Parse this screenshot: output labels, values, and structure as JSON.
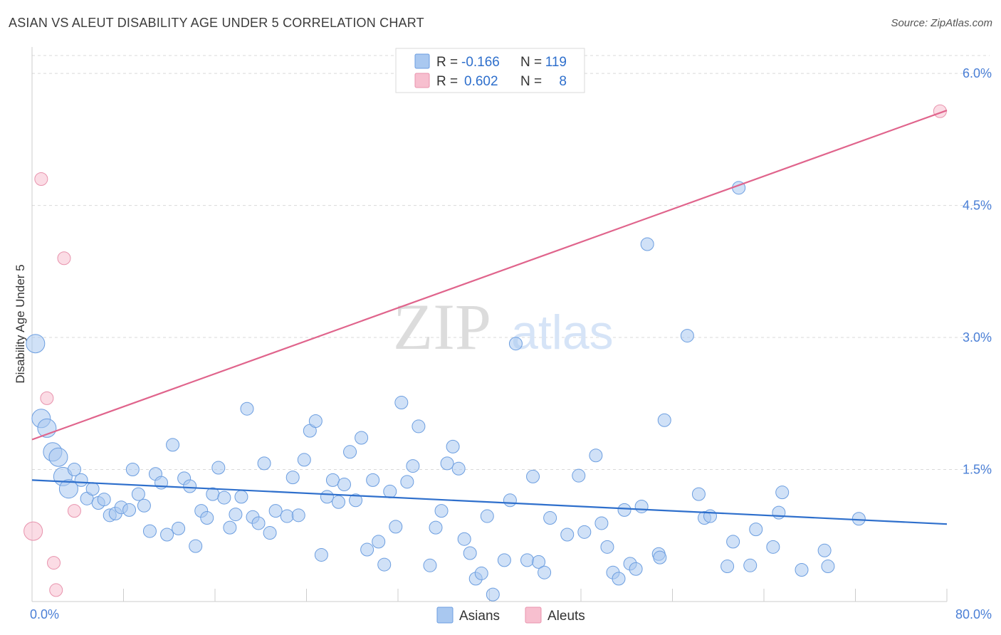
{
  "title": "ASIAN VS ALEUT DISABILITY AGE UNDER 5 CORRELATION CHART",
  "source": "Source: ZipAtlas.com",
  "watermark": {
    "zip": "ZIP",
    "atlas": "atlas"
  },
  "colors": {
    "asian_fill": "#a9c8f0",
    "asian_stroke": "#6c9ee0",
    "asian_line": "#2e6fcc",
    "aleut_fill": "#f7bfcf",
    "aleut_stroke": "#e893ad",
    "aleut_line": "#e0648c",
    "grid": "#d9d9d9",
    "tick_label": "#4a7fd6"
  },
  "legend": {
    "rows": [
      {
        "r_label": "R =",
        "r_value": "-0.166",
        "n_label": "N =",
        "n_value": "119"
      },
      {
        "r_label": "R =",
        "r_value": "0.602",
        "n_label": "N =",
        "n_value": "8"
      }
    ]
  },
  "bottom_legend": [
    "Asians",
    "Aleuts"
  ],
  "chart_data": {
    "type": "scatter",
    "title": "ASIAN VS ALEUT DISABILITY AGE UNDER 5 CORRELATION CHART",
    "xlabel": "",
    "ylabel": "Disability Age Under 5",
    "xlim": [
      0,
      80
    ],
    "ylim": [
      0,
      6.3
    ],
    "x_tick_labels": [
      {
        "value": 0,
        "label": "0.0%"
      },
      {
        "value": 80,
        "label": "80.0%"
      }
    ],
    "y_tick_labels": [
      {
        "value": 1.5,
        "label": "1.5%"
      },
      {
        "value": 3.0,
        "label": "3.0%"
      },
      {
        "value": 4.5,
        "label": "4.5%"
      },
      {
        "value": 6.0,
        "label": "6.0%"
      }
    ],
    "series": [
      {
        "name": "Asians",
        "r": -0.166,
        "n": 119,
        "trend": {
          "x": [
            0,
            80
          ],
          "y": [
            1.38,
            0.88
          ]
        },
        "points": [
          [
            0.3,
            2.93,
            3
          ],
          [
            0.8,
            2.08,
            3
          ],
          [
            1.3,
            1.97,
            3
          ],
          [
            1.8,
            1.7,
            3
          ],
          [
            2.3,
            1.64,
            3
          ],
          [
            2.7,
            1.42,
            3
          ],
          [
            3.2,
            1.28,
            3
          ],
          [
            3.7,
            1.5,
            2
          ],
          [
            4.3,
            1.38,
            2
          ],
          [
            4.8,
            1.17,
            2
          ],
          [
            5.3,
            1.28,
            2
          ],
          [
            5.8,
            1.12,
            2
          ],
          [
            6.3,
            1.16,
            2
          ],
          [
            6.8,
            0.98,
            2
          ],
          [
            7.3,
            1.0,
            2
          ],
          [
            7.8,
            1.07,
            2
          ],
          [
            8.5,
            1.04,
            2
          ],
          [
            8.8,
            1.5,
            2
          ],
          [
            9.3,
            1.22,
            2
          ],
          [
            9.8,
            1.09,
            2
          ],
          [
            10.3,
            0.8,
            2
          ],
          [
            10.8,
            1.45,
            2
          ],
          [
            11.3,
            1.35,
            2
          ],
          [
            11.8,
            0.76,
            2
          ],
          [
            12.3,
            1.78,
            2
          ],
          [
            12.8,
            0.83,
            2
          ],
          [
            13.3,
            1.4,
            2
          ],
          [
            13.8,
            1.31,
            2
          ],
          [
            14.3,
            0.63,
            2
          ],
          [
            14.8,
            1.03,
            2
          ],
          [
            15.3,
            0.95,
            2
          ],
          [
            15.8,
            1.22,
            2
          ],
          [
            16.3,
            1.52,
            2
          ],
          [
            16.8,
            1.18,
            2
          ],
          [
            17.3,
            0.84,
            2
          ],
          [
            17.8,
            0.99,
            2
          ],
          [
            18.3,
            1.19,
            2
          ],
          [
            18.8,
            2.19,
            2
          ],
          [
            19.3,
            0.96,
            2
          ],
          [
            19.8,
            0.89,
            2
          ],
          [
            20.3,
            1.57,
            2
          ],
          [
            20.8,
            0.78,
            2
          ],
          [
            21.3,
            1.03,
            2
          ],
          [
            22.3,
            0.97,
            2
          ],
          [
            22.8,
            1.41,
            2
          ],
          [
            23.3,
            0.98,
            2
          ],
          [
            23.8,
            1.61,
            2
          ],
          [
            24.3,
            1.94,
            2
          ],
          [
            24.8,
            2.05,
            2
          ],
          [
            25.3,
            0.53,
            2
          ],
          [
            25.8,
            1.19,
            2
          ],
          [
            26.3,
            1.38,
            2
          ],
          [
            26.8,
            1.13,
            2
          ],
          [
            27.3,
            1.33,
            2
          ],
          [
            27.8,
            1.7,
            2
          ],
          [
            28.3,
            1.15,
            2
          ],
          [
            28.8,
            1.86,
            2
          ],
          [
            29.3,
            0.59,
            2
          ],
          [
            29.8,
            1.38,
            2
          ],
          [
            30.3,
            0.68,
            2
          ],
          [
            30.8,
            0.42,
            2
          ],
          [
            31.3,
            1.25,
            2
          ],
          [
            31.8,
            0.85,
            2
          ],
          [
            32.3,
            2.26,
            2
          ],
          [
            32.8,
            1.36,
            2
          ],
          [
            33.3,
            1.54,
            2
          ],
          [
            33.8,
            1.99,
            2
          ],
          [
            34.8,
            0.41,
            2
          ],
          [
            35.3,
            0.84,
            2
          ],
          [
            35.8,
            1.03,
            2
          ],
          [
            36.3,
            1.57,
            2
          ],
          [
            36.8,
            1.76,
            2
          ],
          [
            37.3,
            1.51,
            2
          ],
          [
            37.8,
            0.71,
            2
          ],
          [
            38.3,
            0.55,
            2
          ],
          [
            38.8,
            0.26,
            2
          ],
          [
            39.3,
            0.32,
            2
          ],
          [
            39.8,
            0.97,
            2
          ],
          [
            40.3,
            0.08,
            2
          ],
          [
            41.3,
            0.47,
            2
          ],
          [
            41.8,
            1.15,
            2
          ],
          [
            42.3,
            2.93,
            2
          ],
          [
            43.3,
            0.47,
            2
          ],
          [
            43.8,
            1.42,
            2
          ],
          [
            44.3,
            0.45,
            2
          ],
          [
            44.8,
            0.33,
            2
          ],
          [
            45.3,
            0.95,
            2
          ],
          [
            46.8,
            0.76,
            2
          ],
          [
            47.8,
            1.43,
            2
          ],
          [
            48.3,
            0.79,
            2
          ],
          [
            49.3,
            1.66,
            2
          ],
          [
            49.8,
            0.89,
            2
          ],
          [
            50.3,
            0.62,
            2
          ],
          [
            50.8,
            0.33,
            2
          ],
          [
            51.3,
            0.26,
            2
          ],
          [
            51.8,
            1.04,
            2
          ],
          [
            52.3,
            0.43,
            2
          ],
          [
            52.8,
            0.37,
            2
          ],
          [
            53.3,
            1.08,
            2
          ],
          [
            53.8,
            4.06,
            2
          ],
          [
            54.8,
            0.54,
            2
          ],
          [
            54.9,
            0.5,
            2
          ],
          [
            55.3,
            2.06,
            2
          ],
          [
            57.3,
            3.02,
            2
          ],
          [
            58.3,
            1.22,
            2
          ],
          [
            58.8,
            0.95,
            2
          ],
          [
            59.3,
            0.97,
            2
          ],
          [
            60.8,
            0.4,
            2
          ],
          [
            61.3,
            0.68,
            2
          ],
          [
            61.8,
            4.7,
            2
          ],
          [
            62.8,
            0.41,
            2
          ],
          [
            63.3,
            0.82,
            2
          ],
          [
            64.8,
            0.62,
            2
          ],
          [
            65.3,
            1.01,
            2
          ],
          [
            65.6,
            1.24,
            2
          ],
          [
            67.3,
            0.36,
            2
          ],
          [
            69.3,
            0.58,
            2
          ],
          [
            69.6,
            0.4,
            2
          ],
          [
            72.3,
            0.94,
            2
          ]
        ]
      },
      {
        "name": "Aleuts",
        "r": 0.602,
        "n": 8,
        "trend": {
          "x": [
            0,
            80
          ],
          "y": [
            1.84,
            5.58
          ]
        },
        "points": [
          [
            0.1,
            0.8,
            3
          ],
          [
            0.8,
            4.8,
            2
          ],
          [
            1.3,
            2.31,
            2
          ],
          [
            1.9,
            0.44,
            2
          ],
          [
            2.1,
            0.13,
            2
          ],
          [
            2.8,
            3.9,
            2
          ],
          [
            3.7,
            1.03,
            2
          ],
          [
            79.4,
            5.57,
            2
          ]
        ]
      }
    ]
  }
}
